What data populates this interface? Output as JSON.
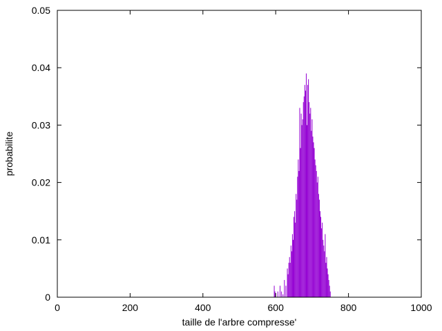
{
  "chart_data": {
    "type": "bar",
    "title": "",
    "xlabel": "taille de l'arbre compresse'",
    "ylabel": "probabilite",
    "xlim": [
      0,
      1000
    ],
    "ylim": [
      0,
      0.05
    ],
    "xticks": [
      0,
      200,
      400,
      600,
      800,
      1000
    ],
    "yticks": [
      0,
      0.01,
      0.02,
      0.03,
      0.04,
      0.05
    ],
    "ytick_labels": [
      "0",
      "0.01",
      "0.02",
      "0.03",
      "0.04",
      "0.05"
    ],
    "grid": false,
    "bar_color": "#9400D3",
    "x": [
      596,
      598,
      606,
      612,
      616,
      620,
      624,
      628,
      632,
      634,
      636,
      638,
      640,
      642,
      644,
      646,
      648,
      650,
      652,
      654,
      656,
      658,
      660,
      662,
      664,
      666,
      668,
      670,
      672,
      674,
      676,
      678,
      680,
      682,
      684,
      686,
      688,
      690,
      692,
      694,
      696,
      698,
      700,
      702,
      704,
      706,
      708,
      710,
      712,
      714,
      716,
      718,
      720,
      722,
      724,
      726,
      728,
      730,
      732,
      734,
      736,
      738,
      740,
      742,
      744,
      746,
      748,
      750
    ],
    "values": [
      0.002,
      0.001,
      0.001,
      0.002,
      0.001,
      0.0005,
      0.003,
      0.002,
      0.005,
      0.004,
      0.006,
      0.007,
      0.006,
      0.009,
      0.008,
      0.011,
      0.01,
      0.014,
      0.015,
      0.013,
      0.018,
      0.017,
      0.021,
      0.024,
      0.022,
      0.033,
      0.026,
      0.032,
      0.03,
      0.031,
      0.034,
      0.035,
      0.037,
      0.036,
      0.039,
      0.03,
      0.037,
      0.038,
      0.034,
      0.032,
      0.033,
      0.029,
      0.031,
      0.028,
      0.027,
      0.026,
      0.024,
      0.023,
      0.022,
      0.02,
      0.021,
      0.018,
      0.017,
      0.015,
      0.014,
      0.012,
      0.013,
      0.01,
      0.009,
      0.008,
      0.011,
      0.006,
      0.007,
      0.005,
      0.004,
      0.003,
      0.002,
      0.001
    ]
  }
}
